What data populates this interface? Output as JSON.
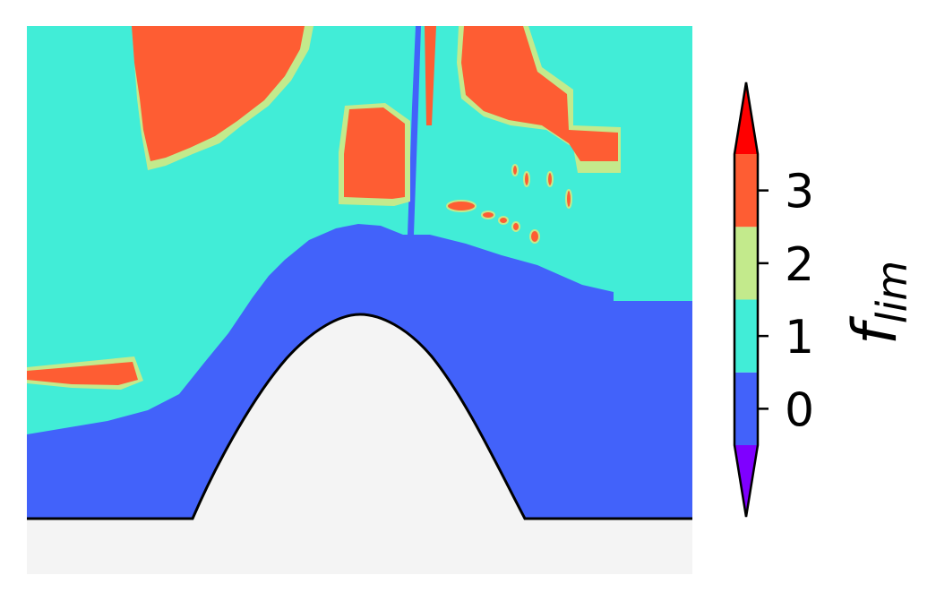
{
  "chart_data": {
    "type": "heatmap",
    "title": "",
    "xlabel": "",
    "ylabel": "",
    "axes_visible": false,
    "domain": {
      "regions": [
        {
          "name": "flim-1-background",
          "value": 1
        },
        {
          "name": "flim-0-near-wall",
          "value": 0
        },
        {
          "name": "flim-3-patches",
          "value": 3
        },
        {
          "name": "flim-2-patch-borders",
          "value": 2
        }
      ],
      "obstacle": "bump",
      "obstacle_color": "#f4f4f4",
      "outline_color": "#000000"
    },
    "colorbar": {
      "label": "f",
      "label_subscript": "lim",
      "ticks": [
        "0",
        "1",
        "2",
        "3"
      ],
      "tick_values": [
        0,
        1,
        2,
        3
      ],
      "range": [
        -0.5,
        3.5
      ],
      "extend": "both",
      "levels": [
        {
          "value": -1,
          "color": "#7f00ff",
          "kind": "under"
        },
        {
          "value": 0,
          "color": "#4262fa"
        },
        {
          "value": 1,
          "color": "#41edd7"
        },
        {
          "value": 2,
          "color": "#c3ea8c"
        },
        {
          "value": 3,
          "color": "#fe5d33"
        },
        {
          "value": 4,
          "color": "#ff0000",
          "kind": "over"
        }
      ]
    }
  }
}
